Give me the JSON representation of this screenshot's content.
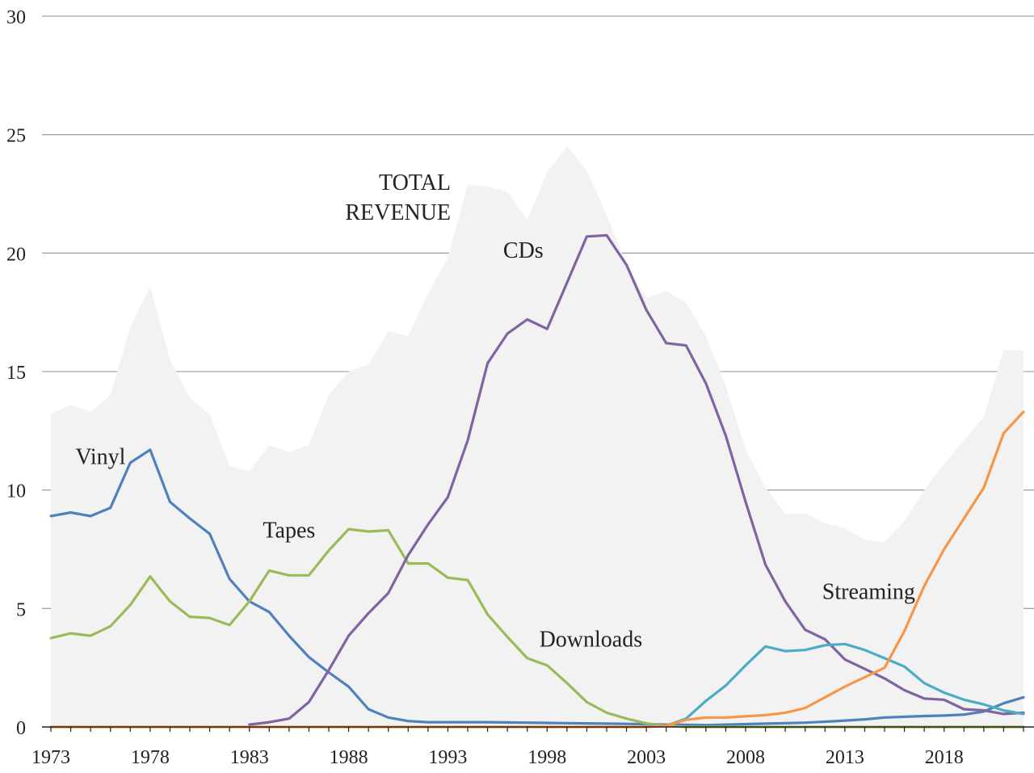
{
  "chart_data": {
    "type": "line",
    "title": "",
    "xlabel": "",
    "ylabel": "",
    "ylim": [
      0,
      30
    ],
    "xlim": [
      1973,
      2022
    ],
    "yticks": [
      0,
      5,
      10,
      15,
      20,
      25,
      30
    ],
    "xticks": [
      "1973",
      "1978",
      "1983",
      "1988",
      "1993",
      "1998",
      "2003",
      "2008",
      "2013",
      "2018"
    ],
    "grid": true,
    "x": [
      1973,
      1974,
      1975,
      1976,
      1977,
      1978,
      1979,
      1980,
      1981,
      1982,
      1983,
      1984,
      1985,
      1986,
      1987,
      1988,
      1989,
      1990,
      1991,
      1992,
      1993,
      1994,
      1995,
      1996,
      1997,
      1998,
      1999,
      2000,
      2001,
      2002,
      2003,
      2004,
      2005,
      2006,
      2007,
      2008,
      2009,
      2010,
      2011,
      2012,
      2013,
      2014,
      2015,
      2016,
      2017,
      2018,
      2019,
      2020,
      2021,
      2022
    ],
    "total": {
      "name": "TOTAL REVENUE",
      "label_lines": [
        "TOTAL",
        "REVENUE"
      ],
      "color": "#f2f2f2",
      "values": [
        13.2,
        13.6,
        13.3,
        14.0,
        16.9,
        18.6,
        15.5,
        13.9,
        13.2,
        11.0,
        10.8,
        11.9,
        11.6,
        11.9,
        14.0,
        15.0,
        15.3,
        16.7,
        16.5,
        18.3,
        19.8,
        22.9,
        22.8,
        22.6,
        21.4,
        23.4,
        24.5,
        23.5,
        21.6,
        19.5,
        18.1,
        18.4,
        17.9,
        16.5,
        14.4,
        11.7,
        10.1,
        9.0,
        9.0,
        8.6,
        8.4,
        7.9,
        7.8,
        8.7,
        10.0,
        11.1,
        12.1,
        13.1,
        15.9,
        15.9
      ]
    },
    "series": [
      {
        "name": "Vinyl",
        "color": "#4f81bd",
        "label_pos": [
          1975.5,
          11.1
        ],
        "anchor": "middle",
        "values": [
          8.9,
          9.05,
          8.9,
          9.25,
          11.15,
          11.7,
          9.5,
          8.8,
          8.15,
          6.25,
          5.3,
          4.85,
          3.85,
          2.95,
          2.3,
          1.7,
          0.75,
          0.4,
          0.25,
          0.2,
          0.2,
          0.2,
          0.2,
          0.19,
          0.18,
          0.17,
          0.16,
          0.15,
          0.14,
          0.13,
          0.12,
          0.1,
          0.09,
          0.08,
          0.1,
          0.12,
          0.14,
          0.16,
          0.18,
          0.22,
          0.27,
          0.32,
          0.4,
          0.43,
          0.46,
          0.48,
          0.52,
          0.65,
          1.0,
          1.25
        ]
      },
      {
        "name": "Tapes",
        "color": "#9bbb59",
        "label_pos": [
          1985.0,
          8.0
        ],
        "anchor": "middle",
        "values": [
          3.75,
          3.95,
          3.85,
          4.25,
          5.15,
          6.35,
          5.3,
          4.65,
          4.6,
          4.3,
          5.3,
          6.6,
          6.4,
          6.4,
          7.45,
          8.35,
          8.25,
          8.3,
          6.9,
          6.9,
          6.3,
          6.2,
          4.75,
          3.8,
          2.9,
          2.6,
          1.85,
          1.05,
          0.6,
          0.35,
          0.15,
          0.05,
          0.0,
          0.0,
          0.0,
          0.0,
          0.0,
          0.0,
          0.0,
          0.0,
          0.0,
          0.0,
          0.0,
          0.0,
          0.0,
          0.0,
          0.0,
          0.0,
          0.0,
          0.0
        ]
      },
      {
        "name": "CDs",
        "color": "#8064a2",
        "label_pos": [
          1996.8,
          19.8
        ],
        "anchor": "middle",
        "values": [
          null,
          null,
          null,
          null,
          null,
          null,
          null,
          null,
          null,
          null,
          0.1,
          0.2,
          0.35,
          1.05,
          2.4,
          3.85,
          4.8,
          5.65,
          7.25,
          8.55,
          9.7,
          12.1,
          15.35,
          16.6,
          17.2,
          16.8,
          18.75,
          20.7,
          20.75,
          19.5,
          17.6,
          16.2,
          16.1,
          14.5,
          12.3,
          9.5,
          6.85,
          5.3,
          4.1,
          3.7,
          2.85,
          2.45,
          2.05,
          1.55,
          1.2,
          1.15,
          0.75,
          0.7,
          0.55,
          0.6
        ]
      },
      {
        "name": "Downloads",
        "color": "#4bacc6",
        "label_pos": [
          2000.2,
          3.4
        ],
        "anchor": "middle",
        "values": [
          null,
          null,
          null,
          null,
          null,
          null,
          null,
          null,
          null,
          null,
          null,
          null,
          null,
          null,
          null,
          null,
          null,
          null,
          null,
          null,
          null,
          null,
          null,
          null,
          null,
          null,
          null,
          null,
          null,
          null,
          0.05,
          0.05,
          0.35,
          1.1,
          1.75,
          2.6,
          3.4,
          3.2,
          3.25,
          3.45,
          3.5,
          3.25,
          2.9,
          2.55,
          1.85,
          1.45,
          1.15,
          0.95,
          0.7,
          0.55
        ]
      },
      {
        "name": "Streaming",
        "color": "#f79646",
        "label_pos": [
          2014.2,
          5.4
        ],
        "anchor": "middle",
        "values": [
          0.0,
          0.0,
          0.0,
          0.0,
          0.0,
          0.0,
          0.0,
          0.0,
          0.0,
          0.0,
          0.0,
          0.0,
          0.0,
          0.0,
          0.0,
          0.0,
          0.0,
          0.0,
          0.0,
          0.0,
          0.0,
          0.0,
          0.0,
          0.0,
          0.0,
          0.0,
          0.0,
          0.0,
          0.0,
          0.0,
          0.0,
          0.05,
          0.3,
          0.4,
          0.4,
          0.45,
          0.5,
          0.6,
          0.8,
          1.25,
          1.7,
          2.1,
          2.5,
          4.05,
          5.95,
          7.5,
          8.8,
          10.1,
          12.4,
          13.3
        ]
      }
    ]
  }
}
